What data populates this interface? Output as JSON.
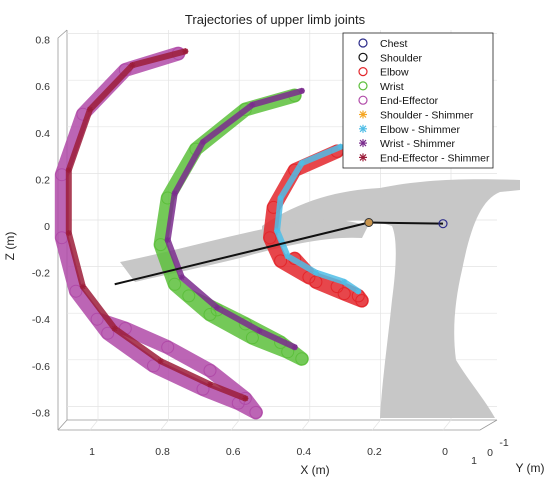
{
  "chart_data": {
    "type": "scatter",
    "projection": "3d",
    "title": "Trajectories of upper limb joints",
    "xlabel": "X (m)",
    "ylabel": "Y (m)",
    "zlabel": "Z (m)",
    "x_ticks": [
      "1",
      "0.8",
      "0.6",
      "0.4",
      "0.2",
      "0"
    ],
    "y_ticks": [
      "1",
      "0",
      "-1"
    ],
    "z_ticks": [
      "0.8",
      "0.6",
      "0.4",
      "0.2",
      "0",
      "-0.2",
      "-0.4",
      "-0.6",
      "-0.8"
    ],
    "xlim": [
      -0.05,
      1.1
    ],
    "zlim": [
      -0.85,
      0.85
    ],
    "grid": true,
    "legend_position": "top-right",
    "static_arm": {
      "chest": {
        "x": 0.0,
        "z": 0.01
      },
      "shoulder": {
        "x": 0.21,
        "z": 0.015
      },
      "elbow_like_end": {
        "x": 0.93,
        "z": -0.25
      }
    },
    "series": [
      {
        "name": "Chest",
        "marker": "o",
        "color": "#2b2b8a",
        "points": [
          [
            0.0,
            0.01
          ]
        ]
      },
      {
        "name": "Shoulder",
        "marker": "o",
        "color": "#111111",
        "points": [
          [
            0.21,
            0.015
          ]
        ]
      },
      {
        "name": "Elbow",
        "marker": "o",
        "color": "#e3262b",
        "path": [
          [
            0.3,
            0.32
          ],
          [
            0.42,
            0.24
          ],
          [
            0.48,
            0.08
          ],
          [
            0.49,
            -0.05
          ],
          [
            0.46,
            -0.15
          ],
          [
            0.38,
            -0.22
          ],
          [
            0.3,
            -0.26
          ],
          [
            0.24,
            -0.3
          ],
          [
            0.23,
            -0.32
          ],
          [
            0.28,
            -0.29
          ],
          [
            0.36,
            -0.24
          ],
          [
            0.42,
            -0.14
          ]
        ]
      },
      {
        "name": "Wrist",
        "marker": "o",
        "color": "#5cbf3b",
        "path": [
          [
            0.42,
            0.56
          ],
          [
            0.56,
            0.5
          ],
          [
            0.7,
            0.33
          ],
          [
            0.78,
            0.12
          ],
          [
            0.8,
            -0.08
          ],
          [
            0.76,
            -0.25
          ],
          [
            0.66,
            -0.38
          ],
          [
            0.54,
            -0.48
          ],
          [
            0.44,
            -0.54
          ],
          [
            0.4,
            -0.57
          ],
          [
            0.46,
            -0.5
          ],
          [
            0.56,
            -0.42
          ],
          [
            0.64,
            -0.36
          ],
          [
            0.72,
            -0.3
          ]
        ]
      },
      {
        "name": "End-Effector",
        "marker": "o",
        "color": "#b04aa8",
        "path": [
          [
            0.75,
            0.74
          ],
          [
            0.9,
            0.67
          ],
          [
            1.02,
            0.48
          ],
          [
            1.08,
            0.22
          ],
          [
            1.08,
            -0.05
          ],
          [
            1.04,
            -0.28
          ],
          [
            0.95,
            -0.46
          ],
          [
            0.82,
            -0.6
          ],
          [
            0.68,
            -0.7
          ],
          [
            0.58,
            -0.76
          ],
          [
            0.53,
            -0.8
          ],
          [
            0.56,
            -0.74
          ],
          [
            0.66,
            -0.62
          ],
          [
            0.78,
            -0.52
          ],
          [
            0.9,
            -0.44
          ],
          [
            0.98,
            -0.4
          ]
        ]
      },
      {
        "name": "Shoulder - Shimmer",
        "marker": "*",
        "color": "#f5a623",
        "points": [
          [
            0.21,
            0.015
          ]
        ]
      },
      {
        "name": "Elbow - Shimmer",
        "marker": "*",
        "color": "#4fbde6",
        "path": [
          [
            0.29,
            0.34
          ],
          [
            0.4,
            0.27
          ],
          [
            0.46,
            0.12
          ],
          [
            0.47,
            -0.02
          ],
          [
            0.44,
            -0.13
          ],
          [
            0.36,
            -0.2
          ],
          [
            0.28,
            -0.24
          ],
          [
            0.24,
            -0.28
          ]
        ]
      },
      {
        "name": "Wrist - Shimmer",
        "marker": "*",
        "color": "#7b2d8e",
        "path": [
          [
            0.4,
            0.58
          ],
          [
            0.54,
            0.52
          ],
          [
            0.68,
            0.36
          ],
          [
            0.76,
            0.14
          ],
          [
            0.78,
            -0.06
          ],
          [
            0.74,
            -0.22
          ],
          [
            0.64,
            -0.35
          ],
          [
            0.52,
            -0.45
          ],
          [
            0.42,
            -0.52
          ]
        ]
      },
      {
        "name": "End-Effector - Shimmer",
        "marker": "*",
        "color": "#9c1d3a",
        "path": [
          [
            0.73,
            0.75
          ],
          [
            0.88,
            0.69
          ],
          [
            1.0,
            0.5
          ],
          [
            1.06,
            0.24
          ],
          [
            1.06,
            -0.03
          ],
          [
            1.02,
            -0.26
          ],
          [
            0.93,
            -0.44
          ],
          [
            0.8,
            -0.58
          ],
          [
            0.66,
            -0.68
          ],
          [
            0.56,
            -0.74
          ]
        ]
      }
    ]
  }
}
